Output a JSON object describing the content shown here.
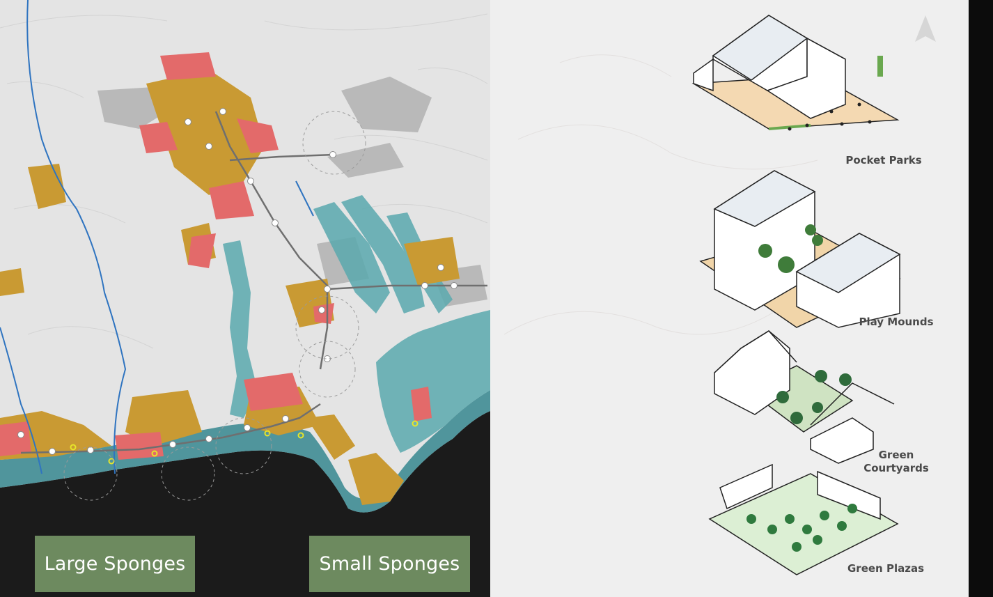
{
  "map": {
    "large_sponges_label": "Large Sponges",
    "small_sponges_label": "Small Sponges",
    "colors": {
      "land": "#e4e4e4",
      "sea": "#1b1b1b",
      "urban_fabric": "#c99a33",
      "priority_area": "#e36a6a",
      "water_network": "#5aa9ae",
      "coastal_buffer": "#3f8c94",
      "rivers": "#2f74c0",
      "metro_line": "#6f6f6f",
      "station": "#ffffff",
      "coastal_station": "#e6e62a"
    }
  },
  "typologies": [
    {
      "label": "Pocket Parks"
    },
    {
      "label": "Play Mounds"
    },
    {
      "label": "Green Courtyards"
    },
    {
      "label": "Green Plazas"
    }
  ],
  "compass_icon": "north-arrow-icon"
}
